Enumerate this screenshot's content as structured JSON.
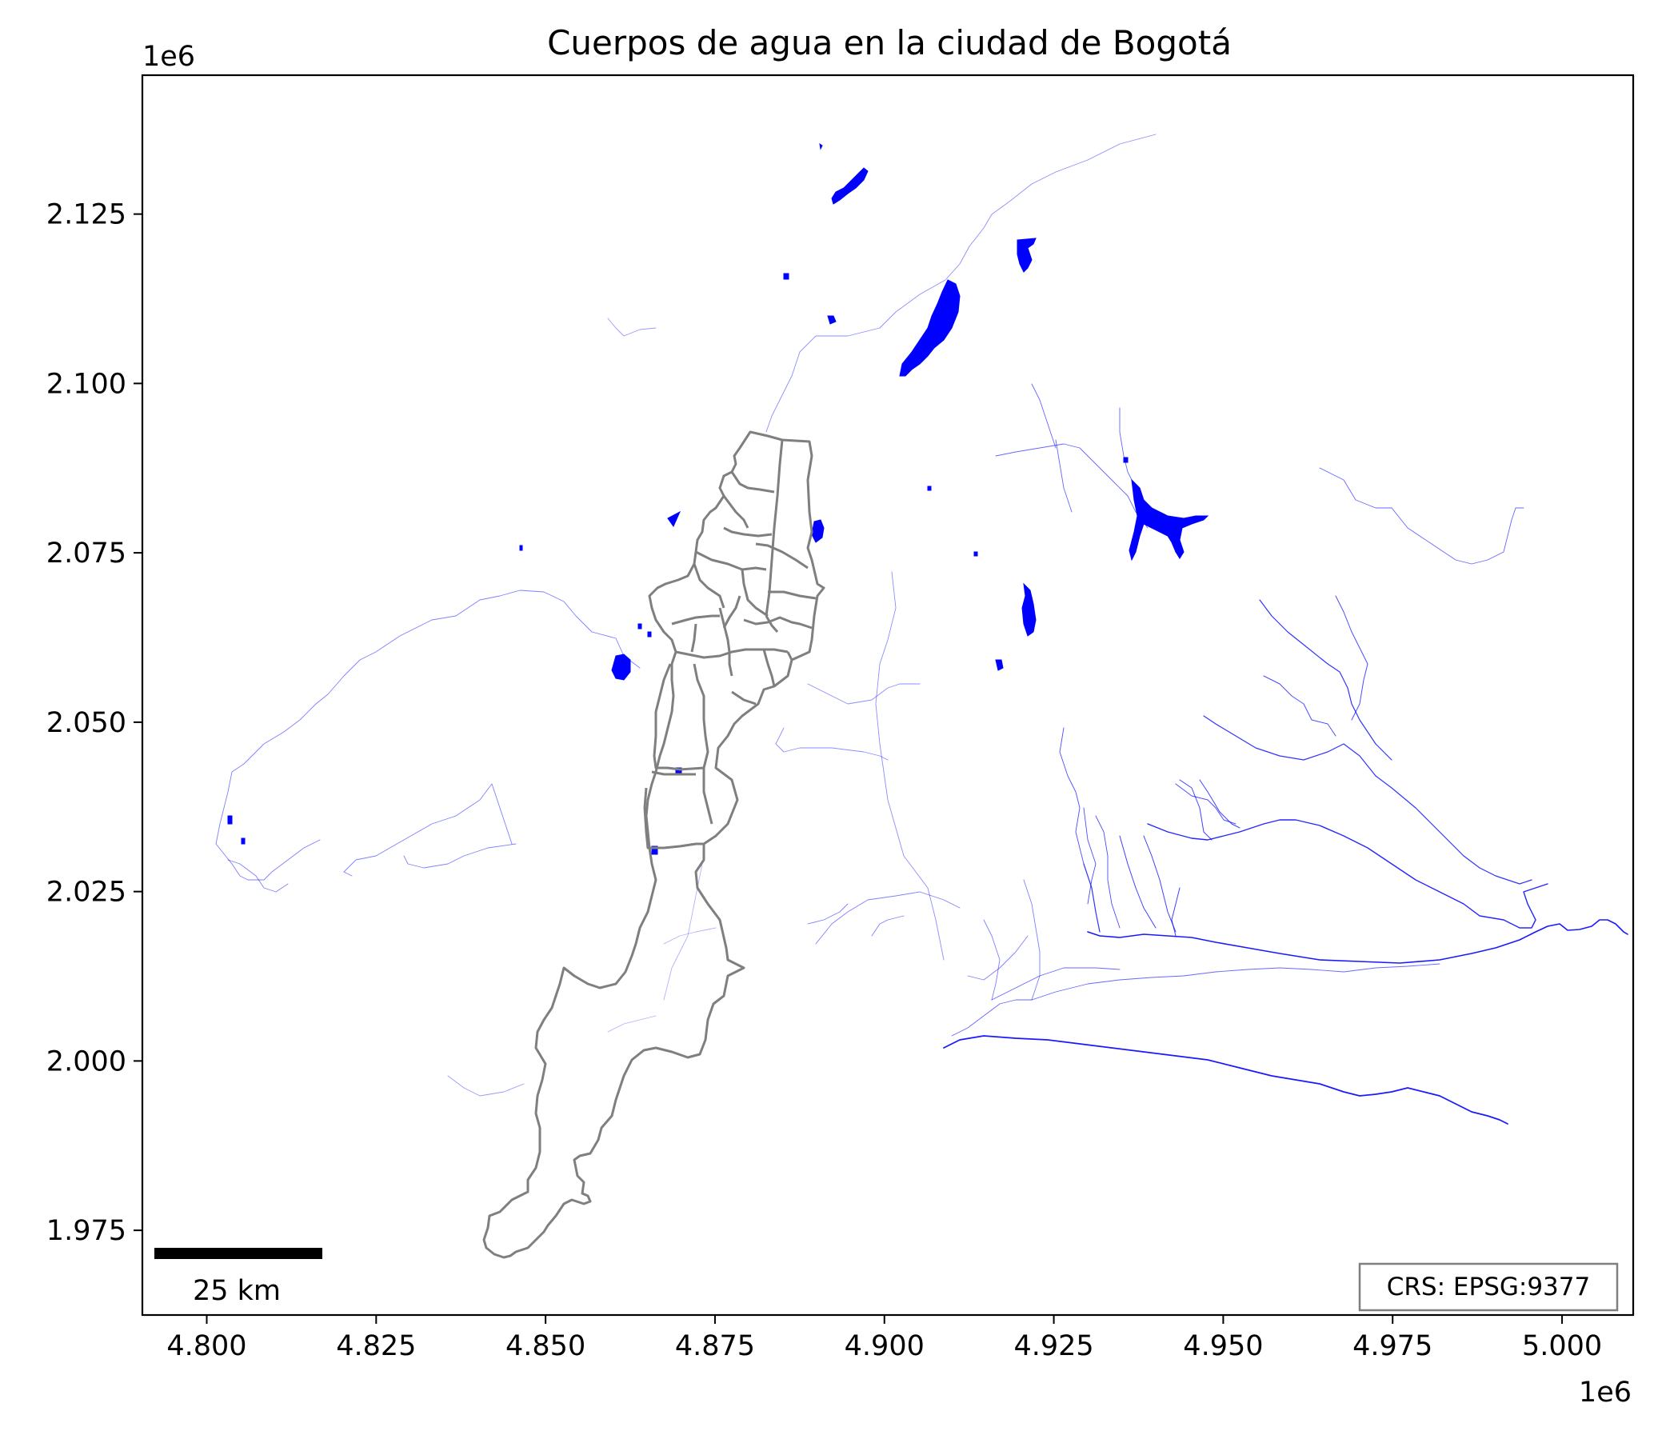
{
  "title": "Cuerpos de agua en la ciudad de Bogotá",
  "x_axis": {
    "ticks": [
      "4.800",
      "4.825",
      "4.850",
      "4.875",
      "4.900",
      "4.925",
      "4.950",
      "4.975",
      "5.000"
    ],
    "offset_label": "1e6",
    "range": [
      4.7905,
      5.0105
    ]
  },
  "y_axis": {
    "ticks": [
      "1.975",
      "2.000",
      "2.025",
      "2.050",
      "2.075",
      "2.100",
      "2.125"
    ],
    "offset_label": "1e6",
    "range": [
      1.9625,
      2.1455
    ]
  },
  "scale_bar": {
    "label": "25 km"
  },
  "crs_label": "CRS: EPSG:9377",
  "colors": {
    "water": "#0000ff",
    "boundary": "#7f7f7f",
    "frame": "#000000",
    "scale_bar": "#000000"
  },
  "layers": [
    "cuerpos-de-agua",
    "limites-localidades"
  ]
}
